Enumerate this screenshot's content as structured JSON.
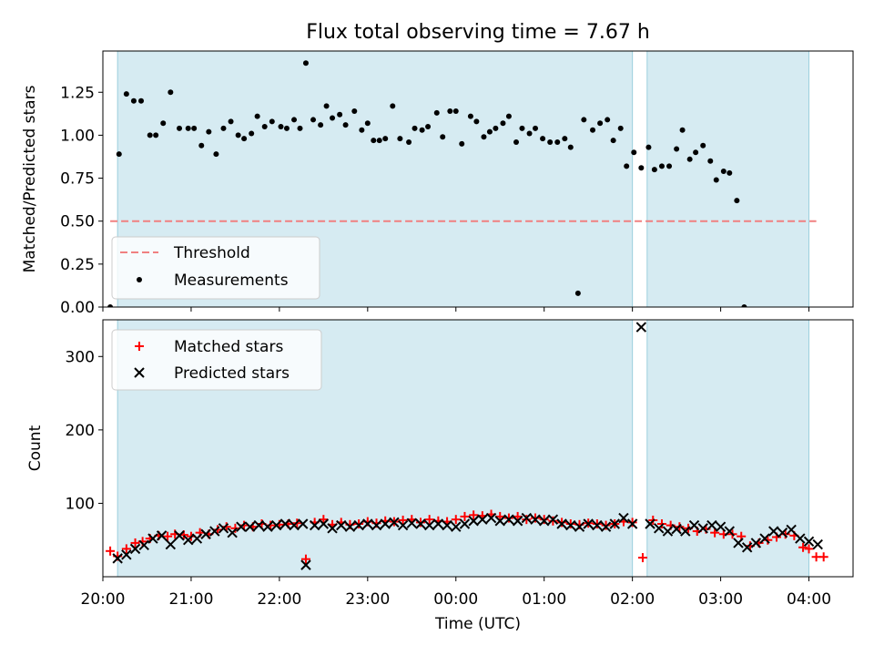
{
  "figure": {
    "title": "Flux total observing time = 7.67 h",
    "xlabel": "Time (UTC)"
  },
  "chart_data": [
    {
      "type": "scatter",
      "name": "ratio-panel",
      "ylabel": "Matched/Predicted stars",
      "xlim": [
        "20:00",
        "04:30"
      ],
      "x_ticks": [
        "20:00",
        "21:00",
        "22:00",
        "23:00",
        "00:00",
        "01:00",
        "02:00",
        "03:00",
        "04:00"
      ],
      "ylim": [
        0,
        1.49
      ],
      "y_ticks": [
        "0.00",
        "0.25",
        "0.50",
        "0.75",
        "1.00",
        "1.25"
      ],
      "y_tick_values": [
        0,
        0.25,
        0.5,
        0.75,
        1.0,
        1.25
      ],
      "shaded_intervals": [
        [
          "20:10",
          "02:00"
        ],
        [
          "02:10",
          "04:00"
        ]
      ],
      "threshold": {
        "label": "Threshold",
        "value": 0.5,
        "x_range": [
          "20:05",
          "04:05"
        ],
        "color": "#f08080"
      },
      "series": [
        {
          "name": "Measurements",
          "color": "#000000",
          "points": [
            [
              "20:05",
              0.0
            ],
            [
              "20:11",
              0.89
            ],
            [
              "20:16",
              1.24
            ],
            [
              "20:21",
              1.2
            ],
            [
              "20:26",
              1.2
            ],
            [
              "20:32",
              1.0
            ],
            [
              "20:36",
              1.0
            ],
            [
              "20:41",
              1.07
            ],
            [
              "20:46",
              1.25
            ],
            [
              "20:52",
              1.04
            ],
            [
              "20:58",
              1.04
            ],
            [
              "21:02",
              1.04
            ],
            [
              "21:07",
              0.94
            ],
            [
              "21:12",
              1.02
            ],
            [
              "21:17",
              0.89
            ],
            [
              "21:22",
              1.04
            ],
            [
              "21:27",
              1.08
            ],
            [
              "21:32",
              1.0
            ],
            [
              "21:36",
              0.98
            ],
            [
              "21:41",
              1.01
            ],
            [
              "21:45",
              1.11
            ],
            [
              "21:50",
              1.05
            ],
            [
              "21:55",
              1.08
            ],
            [
              "22:01",
              1.05
            ],
            [
              "22:05",
              1.04
            ],
            [
              "22:10",
              1.09
            ],
            [
              "22:14",
              1.04
            ],
            [
              "22:18",
              1.42
            ],
            [
              "22:23",
              1.09
            ],
            [
              "22:28",
              1.06
            ],
            [
              "22:32",
              1.17
            ],
            [
              "22:36",
              1.1
            ],
            [
              "22:41",
              1.12
            ],
            [
              "22:45",
              1.06
            ],
            [
              "22:51",
              1.14
            ],
            [
              "22:56",
              1.03
            ],
            [
              "23:00",
              1.07
            ],
            [
              "23:04",
              0.97
            ],
            [
              "23:08",
              0.97
            ],
            [
              "23:12",
              0.98
            ],
            [
              "23:17",
              1.17
            ],
            [
              "23:22",
              0.98
            ],
            [
              "23:28",
              0.96
            ],
            [
              "23:32",
              1.04
            ],
            [
              "23:37",
              1.03
            ],
            [
              "23:41",
              1.05
            ],
            [
              "23:47",
              1.13
            ],
            [
              "23:51",
              0.99
            ],
            [
              "23:56",
              1.14
            ],
            [
              "00:00",
              1.14
            ],
            [
              "00:04",
              0.95
            ],
            [
              "00:10",
              1.11
            ],
            [
              "00:14",
              1.08
            ],
            [
              "00:19",
              0.99
            ],
            [
              "00:23",
              1.02
            ],
            [
              "00:27",
              1.04
            ],
            [
              "00:32",
              1.07
            ],
            [
              "00:36",
              1.11
            ],
            [
              "00:41",
              0.96
            ],
            [
              "00:45",
              1.04
            ],
            [
              "00:50",
              1.01
            ],
            [
              "00:54",
              1.04
            ],
            [
              "00:59",
              0.98
            ],
            [
              "01:04",
              0.96
            ],
            [
              "01:09",
              0.96
            ],
            [
              "01:14",
              0.98
            ],
            [
              "01:18",
              0.93
            ],
            [
              "01:23",
              0.08
            ],
            [
              "01:27",
              1.09
            ],
            [
              "01:33",
              1.03
            ],
            [
              "01:38",
              1.07
            ],
            [
              "01:43",
              1.09
            ],
            [
              "01:47",
              0.97
            ],
            [
              "01:52",
              1.04
            ],
            [
              "01:56",
              0.82
            ],
            [
              "02:01",
              0.9
            ],
            [
              "02:06",
              0.81
            ],
            [
              "02:11",
              0.93
            ],
            [
              "02:15",
              0.8
            ],
            [
              "02:20",
              0.82
            ],
            [
              "02:25",
              0.82
            ],
            [
              "02:30",
              0.92
            ],
            [
              "02:34",
              1.03
            ],
            [
              "02:39",
              0.86
            ],
            [
              "02:43",
              0.9
            ],
            [
              "02:48",
              0.94
            ],
            [
              "02:53",
              0.85
            ],
            [
              "02:57",
              0.74
            ],
            [
              "03:02",
              0.79
            ],
            [
              "03:06",
              0.78
            ],
            [
              "03:11",
              0.62
            ],
            [
              "03:16",
              0.0
            ]
          ]
        }
      ],
      "legend": {
        "placement": "lower-left"
      }
    },
    {
      "type": "scatter",
      "name": "count-panel",
      "ylabel": "Count",
      "xlim": [
        "20:00",
        "04:30"
      ],
      "x_ticks": [
        "20:00",
        "21:00",
        "22:00",
        "23:00",
        "00:00",
        "01:00",
        "02:00",
        "03:00",
        "04:00"
      ],
      "ylim": [
        0,
        350
      ],
      "y_ticks": [
        "100",
        "200",
        "300"
      ],
      "y_tick_values": [
        100,
        200,
        300
      ],
      "shaded_intervals": [
        [
          "20:10",
          "02:00"
        ],
        [
          "02:10",
          "04:00"
        ]
      ],
      "series": [
        {
          "name": "Matched stars",
          "marker": "+",
          "color": "#ff0000"
        },
        {
          "name": "Predicted stars",
          "marker": "x",
          "color": "#000000"
        }
      ],
      "legend": {
        "placement": "upper-left"
      }
    }
  ],
  "counts": {
    "matched": [
      [
        "20:05",
        35
      ],
      [
        "20:10",
        28
      ],
      [
        "20:16",
        38
      ],
      [
        "20:22",
        46
      ],
      [
        "20:27",
        48
      ],
      [
        "20:32",
        52
      ],
      [
        "20:38",
        56
      ],
      [
        "20:44",
        55
      ],
      [
        "20:49",
        58
      ],
      [
        "20:55",
        57
      ],
      [
        "21:00",
        55
      ],
      [
        "21:06",
        60
      ],
      [
        "21:12",
        58
      ],
      [
        "21:18",
        64
      ],
      [
        "21:24",
        68
      ],
      [
        "21:30",
        66
      ],
      [
        "21:36",
        70
      ],
      [
        "21:42",
        68
      ],
      [
        "21:48",
        72
      ],
      [
        "21:54",
        70
      ],
      [
        "22:00",
        71
      ],
      [
        "22:06",
        72
      ],
      [
        "22:12",
        73
      ],
      [
        "22:18",
        24
      ],
      [
        "22:24",
        74
      ],
      [
        "22:30",
        78
      ],
      [
        "22:36",
        71
      ],
      [
        "22:42",
        74
      ],
      [
        "22:48",
        71
      ],
      [
        "22:54",
        72
      ],
      [
        "23:00",
        75
      ],
      [
        "23:06",
        73
      ],
      [
        "23:12",
        76
      ],
      [
        "23:18",
        75
      ],
      [
        "23:24",
        77
      ],
      [
        "23:30",
        78
      ],
      [
        "23:36",
        74
      ],
      [
        "23:42",
        78
      ],
      [
        "23:48",
        76
      ],
      [
        "23:54",
        75
      ],
      [
        "00:00",
        78
      ],
      [
        "00:06",
        82
      ],
      [
        "00:12",
        84
      ],
      [
        "00:18",
        83
      ],
      [
        "00:24",
        85
      ],
      [
        "00:30",
        82
      ],
      [
        "00:36",
        80
      ],
      [
        "00:42",
        82
      ],
      [
        "00:48",
        78
      ],
      [
        "00:54",
        80
      ],
      [
        "01:00",
        78
      ],
      [
        "01:06",
        76
      ],
      [
        "01:12",
        74
      ],
      [
        "01:18",
        72
      ],
      [
        "01:24",
        71
      ],
      [
        "01:30",
        73
      ],
      [
        "01:36",
        72
      ],
      [
        "01:42",
        70
      ],
      [
        "01:48",
        72
      ],
      [
        "01:54",
        75
      ],
      [
        "02:00",
        74
      ],
      [
        "02:07",
        26
      ],
      [
        "02:14",
        77
      ],
      [
        "02:20",
        72
      ],
      [
        "02:26",
        70
      ],
      [
        "02:32",
        68
      ],
      [
        "02:38",
        66
      ],
      [
        "02:44",
        62
      ],
      [
        "02:50",
        65
      ],
      [
        "02:56",
        60
      ],
      [
        "03:02",
        58
      ],
      [
        "03:08",
        58
      ],
      [
        "03:14",
        55
      ],
      [
        "03:20",
        42
      ],
      [
        "03:26",
        46
      ],
      [
        "03:32",
        50
      ],
      [
        "03:38",
        54
      ],
      [
        "03:44",
        58
      ],
      [
        "03:50",
        56
      ],
      [
        "03:56",
        40
      ],
      [
        "04:00",
        38
      ],
      [
        "04:05",
        27
      ],
      [
        "04:10",
        27
      ]
    ],
    "predicted": [
      [
        "20:10",
        25
      ],
      [
        "20:16",
        30
      ],
      [
        "20:22",
        38
      ],
      [
        "20:28",
        43
      ],
      [
        "20:34",
        52
      ],
      [
        "20:40",
        56
      ],
      [
        "20:46",
        44
      ],
      [
        "20:52",
        56
      ],
      [
        "20:58",
        50
      ],
      [
        "21:04",
        52
      ],
      [
        "21:10",
        58
      ],
      [
        "21:16",
        62
      ],
      [
        "21:22",
        66
      ],
      [
        "21:28",
        60
      ],
      [
        "21:34",
        68
      ],
      [
        "21:40",
        68
      ],
      [
        "21:46",
        70
      ],
      [
        "21:52",
        68
      ],
      [
        "21:58",
        70
      ],
      [
        "22:04",
        72
      ],
      [
        "22:10",
        70
      ],
      [
        "22:16",
        72
      ],
      [
        "22:18",
        16
      ],
      [
        "22:24",
        70
      ],
      [
        "22:30",
        72
      ],
      [
        "22:36",
        66
      ],
      [
        "22:42",
        70
      ],
      [
        "22:48",
        68
      ],
      [
        "22:54",
        70
      ],
      [
        "23:00",
        72
      ],
      [
        "23:06",
        70
      ],
      [
        "23:12",
        72
      ],
      [
        "23:18",
        74
      ],
      [
        "23:24",
        70
      ],
      [
        "23:30",
        73
      ],
      [
        "23:36",
        72
      ],
      [
        "23:42",
        70
      ],
      [
        "23:48",
        72
      ],
      [
        "23:54",
        70
      ],
      [
        "00:00",
        68
      ],
      [
        "00:06",
        72
      ],
      [
        "00:12",
        76
      ],
      [
        "00:18",
        78
      ],
      [
        "00:24",
        80
      ],
      [
        "00:30",
        76
      ],
      [
        "00:36",
        78
      ],
      [
        "00:42",
        76
      ],
      [
        "00:48",
        80
      ],
      [
        "00:54",
        78
      ],
      [
        "01:00",
        76
      ],
      [
        "01:06",
        78
      ],
      [
        "01:12",
        72
      ],
      [
        "01:18",
        70
      ],
      [
        "01:24",
        68
      ],
      [
        "01:30",
        72
      ],
      [
        "01:36",
        70
      ],
      [
        "01:42",
        68
      ],
      [
        "01:48",
        72
      ],
      [
        "01:54",
        80
      ],
      [
        "02:00",
        72
      ],
      [
        "02:06",
        340
      ],
      [
        "02:12",
        72
      ],
      [
        "02:18",
        66
      ],
      [
        "02:24",
        62
      ],
      [
        "02:30",
        65
      ],
      [
        "02:36",
        62
      ],
      [
        "02:42",
        70
      ],
      [
        "02:48",
        66
      ],
      [
        "02:54",
        70
      ],
      [
        "03:00",
        68
      ],
      [
        "03:06",
        62
      ],
      [
        "03:12",
        46
      ],
      [
        "03:18",
        40
      ],
      [
        "03:24",
        46
      ],
      [
        "03:30",
        52
      ],
      [
        "03:36",
        62
      ],
      [
        "03:42",
        60
      ],
      [
        "03:48",
        64
      ],
      [
        "03:54",
        52
      ],
      [
        "04:00",
        48
      ],
      [
        "04:06",
        44
      ]
    ]
  }
}
